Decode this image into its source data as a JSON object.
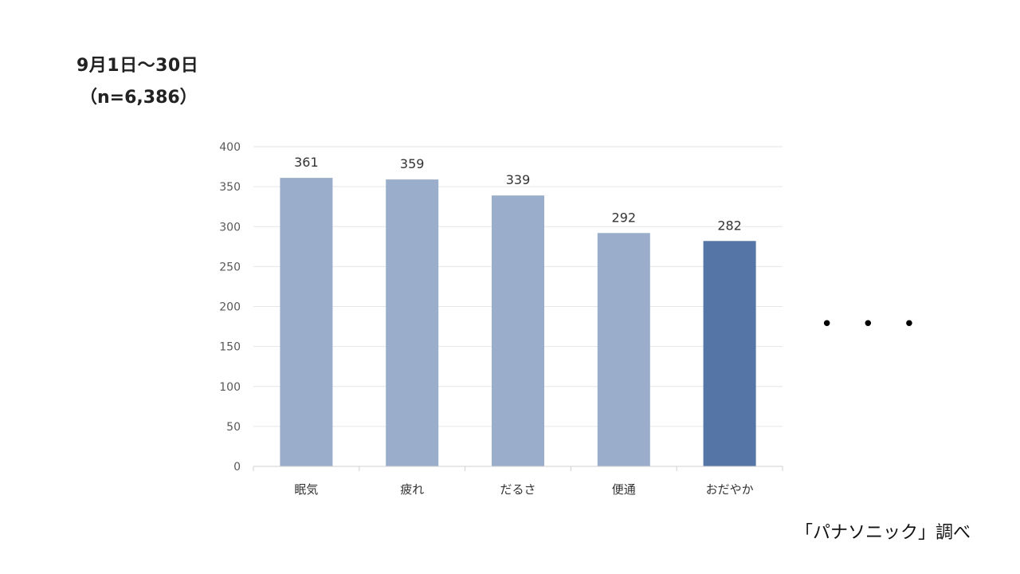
{
  "header": {
    "period": "9月1日〜30日",
    "sample": "（n=6,386）"
  },
  "ellipsis": "• • •",
  "source": "「パナソニック」調べ",
  "colors": {
    "bar": "#9aaecb",
    "bar_highlight": "#5575a7",
    "grid": "#e6e6e6",
    "axis_text": "#595959",
    "label_text": "#333333"
  },
  "chart_data": {
    "type": "bar",
    "categories": [
      "眠気",
      "疲れ",
      "だるさ",
      "便通",
      "おだやか"
    ],
    "values": [
      361,
      359,
      339,
      292,
      282
    ],
    "highlight_index": 4,
    "ylim": [
      0,
      400
    ],
    "yticks": [
      0,
      50,
      100,
      150,
      200,
      250,
      300,
      350,
      400
    ],
    "grid": true,
    "data_labels": true
  }
}
